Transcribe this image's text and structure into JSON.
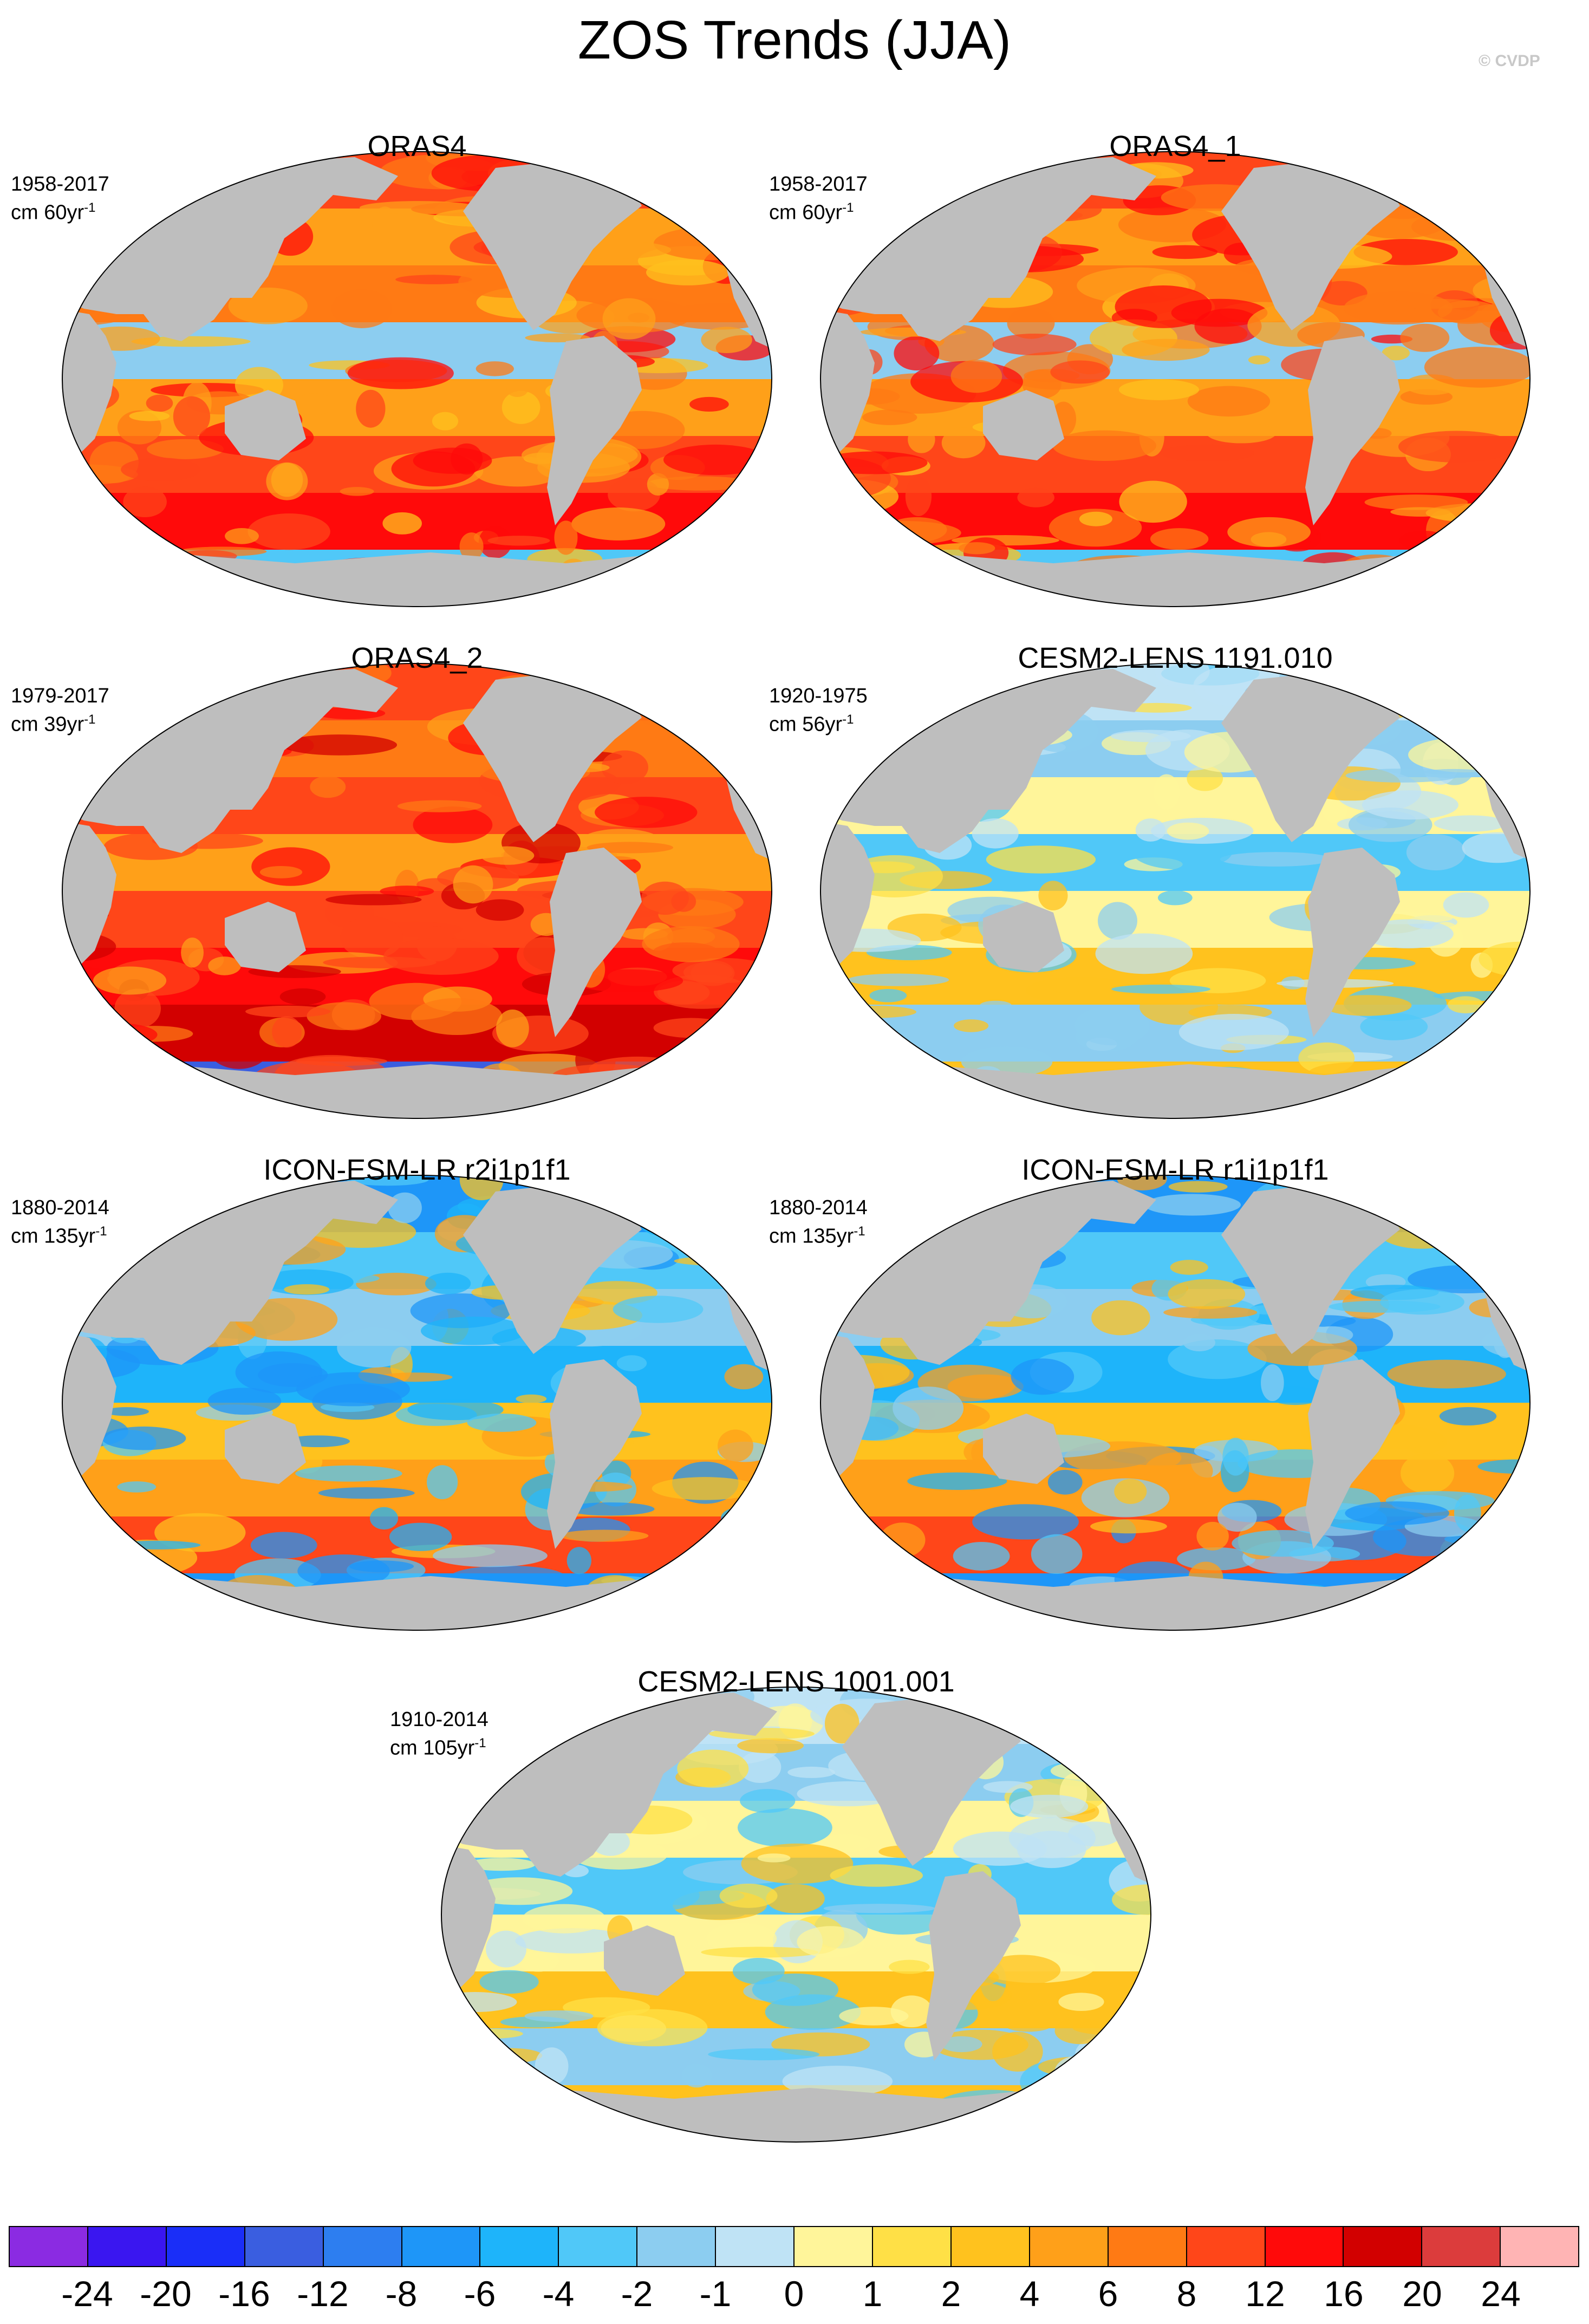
{
  "title": "ZOS Trends (JJA)",
  "credit": "© CVDP",
  "panels": [
    {
      "title": "ORAS4",
      "period": "1958-2017",
      "units": "cm 60yr",
      "units_exp": "-1",
      "theme": "warm"
    },
    {
      "title": "ORAS4_1",
      "period": "1958-2017",
      "units": "cm 60yr",
      "units_exp": "-1",
      "theme": "warm"
    },
    {
      "title": "ORAS4_2",
      "period": "1979-2017",
      "units": "cm 39yr",
      "units_exp": "-1",
      "theme": "hot"
    },
    {
      "title": "CESM2-LENS 1191.010",
      "period": "1920-1975",
      "units": "cm 56yr",
      "units_exp": "-1",
      "theme": "cool"
    },
    {
      "title": "ICON-ESM-LR r2i1p1f1",
      "period": "1880-2014",
      "units": "cm 135yr",
      "units_exp": "-1",
      "theme": "mixed"
    },
    {
      "title": "ICON-ESM-LR r1i1p1f1",
      "period": "1880-2014",
      "units": "cm 135yr",
      "units_exp": "-1",
      "theme": "mixed"
    },
    {
      "title": "CESM2-LENS 1001.001",
      "period": "1910-2014",
      "units": "cm 105yr",
      "units_exp": "-1",
      "theme": "cool"
    }
  ],
  "colorbar": {
    "colors": [
      "#8b2be2",
      "#3a16f0",
      "#1a2ef8",
      "#3a5ee0",
      "#2d7ef0",
      "#1e96f8",
      "#1eb4fa",
      "#50c8f8",
      "#8ccdf0",
      "#bfe3f5",
      "#fff59a",
      "#ffe046",
      "#ffc21e",
      "#ffa019",
      "#ff7a14",
      "#ff4619",
      "#ff0a0a",
      "#d20000",
      "#dc3c3c",
      "#ffb4b4"
    ],
    "labels": [
      "-24",
      "-20",
      "-16",
      "-12",
      "-8",
      "-6",
      "-4",
      "-2",
      "-1",
      "0",
      "1",
      "2",
      "4",
      "6",
      "8",
      "12",
      "16",
      "20",
      "24"
    ]
  }
}
